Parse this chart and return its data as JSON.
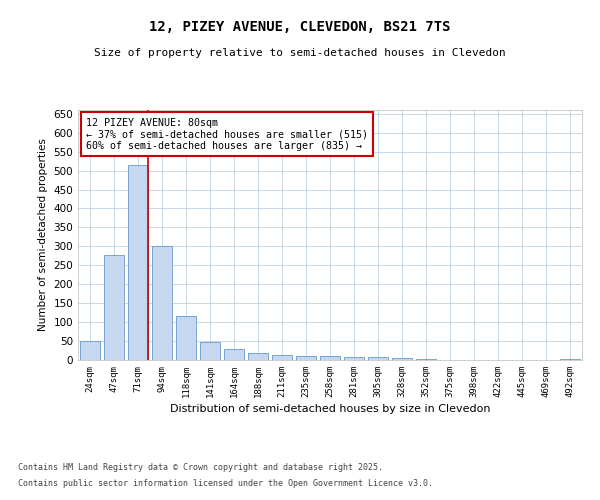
{
  "title1": "12, PIZEY AVENUE, CLEVEDON, BS21 7TS",
  "title2": "Size of property relative to semi-detached houses in Clevedon",
  "xlabel": "Distribution of semi-detached houses by size in Clevedon",
  "ylabel": "Number of semi-detached properties",
  "categories": [
    "24sqm",
    "47sqm",
    "71sqm",
    "94sqm",
    "118sqm",
    "141sqm",
    "164sqm",
    "188sqm",
    "211sqm",
    "235sqm",
    "258sqm",
    "281sqm",
    "305sqm",
    "328sqm",
    "352sqm",
    "375sqm",
    "398sqm",
    "422sqm",
    "445sqm",
    "469sqm",
    "492sqm"
  ],
  "values": [
    50,
    278,
    515,
    300,
    117,
    47,
    30,
    18,
    13,
    10,
    10,
    7,
    7,
    5,
    2,
    1,
    0,
    0,
    1,
    0,
    2
  ],
  "bar_color": "#c5d8f0",
  "bar_edge_color": "#6699cc",
  "vline_bar_index": 2,
  "vline_color": "#cc0000",
  "annotation_title": "12 PIZEY AVENUE: 80sqm",
  "annotation_line1": "← 37% of semi-detached houses are smaller (515)",
  "annotation_line2": "60% of semi-detached houses are larger (835) →",
  "annotation_box_color": "#ffffff",
  "annotation_box_edge_color": "#cc0000",
  "ylim": [
    0,
    660
  ],
  "yticks": [
    0,
    50,
    100,
    150,
    200,
    250,
    300,
    350,
    400,
    450,
    500,
    550,
    600,
    650
  ],
  "footer_line1": "Contains HM Land Registry data © Crown copyright and database right 2025.",
  "footer_line2": "Contains public sector information licensed under the Open Government Licence v3.0.",
  "background_color": "#ffffff",
  "grid_color": "#c8d8e8"
}
